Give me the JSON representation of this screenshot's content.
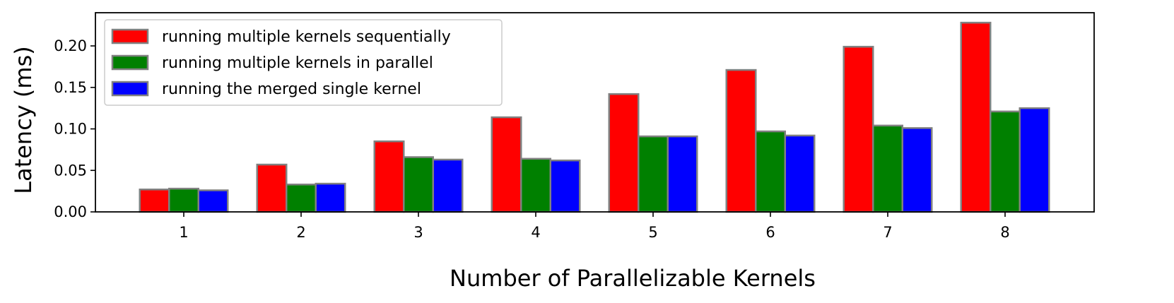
{
  "chart_data": {
    "type": "bar",
    "title": "",
    "xlabel": "Number of Parallelizable Kernels",
    "ylabel": "Latency (ms)",
    "categories": [
      "1",
      "2",
      "3",
      "4",
      "5",
      "6",
      "7",
      "8"
    ],
    "ylim": [
      0,
      0.24
    ],
    "yticks": [
      "0.00",
      "0.05",
      "0.10",
      "0.15",
      "0.20"
    ],
    "grid": false,
    "legend_position": "top-left",
    "series": [
      {
        "name": "running multiple kernels sequentially",
        "color": "#ff0000",
        "values": [
          0.027,
          0.057,
          0.085,
          0.114,
          0.142,
          0.171,
          0.199,
          0.228
        ]
      },
      {
        "name": "running multiple kernels in parallel",
        "color": "#008000",
        "values": [
          0.028,
          0.033,
          0.066,
          0.064,
          0.091,
          0.097,
          0.104,
          0.121
        ]
      },
      {
        "name": "running the merged single kernel",
        "color": "#0000ff",
        "values": [
          0.026,
          0.034,
          0.063,
          0.062,
          0.091,
          0.092,
          0.101,
          0.125
        ]
      }
    ],
    "bar_edge_color": "#808080"
  }
}
